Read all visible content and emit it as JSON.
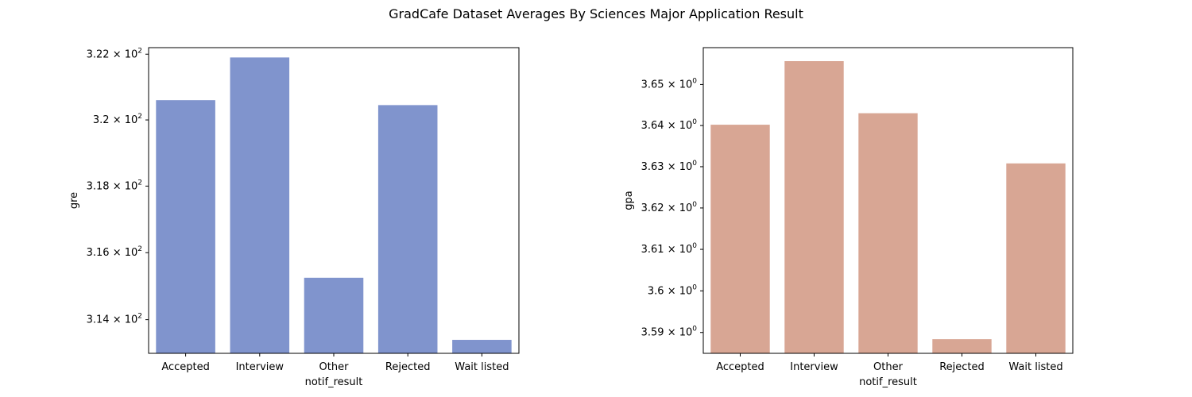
{
  "figure": {
    "title": "GradCafe Dataset Averages By Sciences Major Application Result"
  },
  "chart_data": [
    {
      "type": "bar",
      "yscale": "log",
      "categories": [
        "Accepted",
        "Interview",
        "Other",
        "Rejected",
        "Wait listed"
      ],
      "values": [
        320.6,
        321.9,
        315.25,
        320.45,
        313.4
      ],
      "xlabel": "notif_result",
      "ylabel": "gre",
      "ylim": [
        313.0,
        322.2
      ],
      "yticks": [
        {
          "value": 314,
          "mantissa": "3.14",
          "exponent": "2"
        },
        {
          "value": 316,
          "mantissa": "3.16",
          "exponent": "2"
        },
        {
          "value": 318,
          "mantissa": "3.18",
          "exponent": "2"
        },
        {
          "value": 320,
          "mantissa": "3.2",
          "exponent": "2"
        },
        {
          "value": 322,
          "mantissa": "3.22",
          "exponent": "2"
        }
      ],
      "color": "#8094cd",
      "grid": false
    },
    {
      "type": "bar",
      "yscale": "log",
      "categories": [
        "Accepted",
        "Interview",
        "Other",
        "Rejected",
        "Wait listed"
      ],
      "values": [
        3.6402,
        3.6557,
        3.643,
        3.5884,
        3.6308
      ],
      "xlabel": "notif_result",
      "ylabel": "gpa",
      "ylim": [
        3.585,
        3.659
      ],
      "yticks": [
        {
          "value": 3.59,
          "mantissa": "3.59",
          "exponent": "0"
        },
        {
          "value": 3.6,
          "mantissa": "3.6",
          "exponent": "0"
        },
        {
          "value": 3.61,
          "mantissa": "3.61",
          "exponent": "0"
        },
        {
          "value": 3.62,
          "mantissa": "3.62",
          "exponent": "0"
        },
        {
          "value": 3.63,
          "mantissa": "3.63",
          "exponent": "0"
        },
        {
          "value": 3.64,
          "mantissa": "3.64",
          "exponent": "0"
        },
        {
          "value": 3.65,
          "mantissa": "3.65",
          "exponent": "0"
        }
      ],
      "color": "#d8a694",
      "grid": false
    }
  ]
}
